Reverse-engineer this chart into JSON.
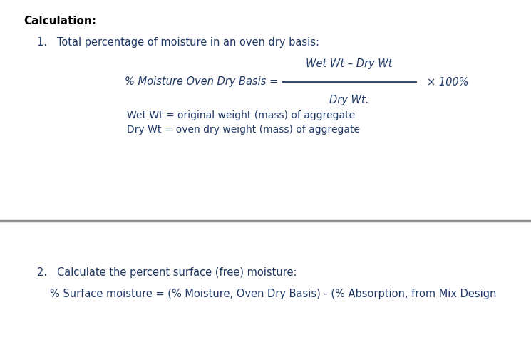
{
  "bg_color": "#ffffff",
  "text_color": "#1f3864",
  "title": "Calculation:",
  "title_color": "#000000",
  "item1_label": "1.   Total percentage of moisture in an oven dry basis:",
  "formula_lhs": "% Moisture Oven Dry Basis =",
  "formula_numerator": "Wet Wt – Dry Wt",
  "formula_denominator": "Dry Wt.",
  "formula_x100": "× 100%",
  "def1": "Wet Wt = original weight (mass) of aggregate",
  "def2": "Dry Wt = oven dry weight (mass) of aggregate",
  "divider_color": "#909090",
  "item2_label": "2.   Calculate the percent surface (free) moisture:",
  "item2_formula": "% Surface moisture = (% Moisture, Oven Dry Basis) - (% Absorption, from Mix Design",
  "figsize": [
    7.45,
    5.08
  ],
  "dpi": 100
}
